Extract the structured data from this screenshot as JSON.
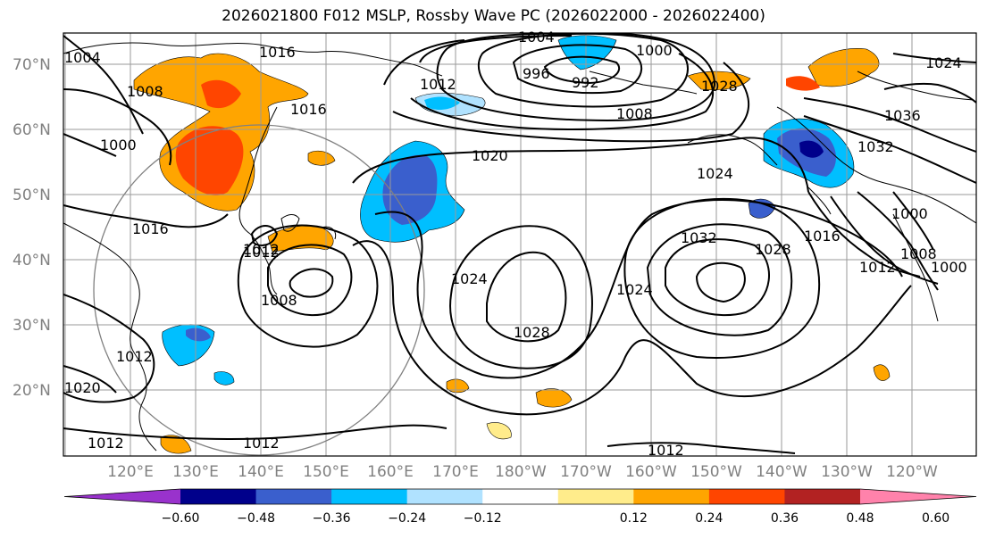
{
  "title": "2026021800 F012 MSLP, Rossby Wave PC (2026022000 - 2026022400)",
  "lat_labels": [
    "70°N",
    "60°N",
    "50°N",
    "40°N",
    "30°N",
    "20°N"
  ],
  "lon_labels": [
    "120°E",
    "130°E",
    "140°E",
    "150°E",
    "160°E",
    "170°E",
    "180°W",
    "170°W",
    "160°W",
    "150°W",
    "140°W",
    "130°W",
    "120°W"
  ],
  "colorbar": {
    "ticks": [
      "−0.60",
      "−0.48",
      "−0.36",
      "−0.24",
      "−0.12",
      "0.12",
      "0.24",
      "0.36",
      "0.48",
      "0.60"
    ],
    "colors": [
      "#9932CC",
      "#00008B",
      "#3A5FCD",
      "#00BFFF",
      "#B0E2FF",
      "#FFFFFF",
      "#FFEC8B",
      "#FFA500",
      "#FF4500",
      "#B22222",
      "#FF82AB"
    ]
  },
  "contour_labels": [
    {
      "id": "l1004a",
      "text": "1004"
    },
    {
      "id": "l1016a",
      "text": "1016"
    },
    {
      "id": "l1008a",
      "text": "1008"
    },
    {
      "id": "l1012a",
      "text": "1012"
    },
    {
      "id": "l1004b",
      "text": "1004"
    },
    {
      "id": "l1000a",
      "text": "1000"
    },
    {
      "id": "l996",
      "text": "996"
    },
    {
      "id": "l992",
      "text": "992"
    },
    {
      "id": "l1008b",
      "text": "1008"
    },
    {
      "id": "l1024a",
      "text": "1024"
    },
    {
      "id": "l1028a",
      "text": "1028"
    },
    {
      "id": "l1036",
      "text": "1036"
    },
    {
      "id": "l1032a",
      "text": "1032"
    },
    {
      "id": "l1008c",
      "text": "1008"
    },
    {
      "id": "l1000b",
      "text": "1000"
    },
    {
      "id": "l1000c",
      "text": "1000"
    },
    {
      "id": "l1020",
      "text": "1020"
    },
    {
      "id": "l1024b",
      "text": "1024"
    },
    {
      "id": "l1016b",
      "text": "1016"
    },
    {
      "id": "l1012b",
      "text": "1012"
    },
    {
      "id": "l1016c",
      "text": "1016"
    },
    {
      "id": "l1012c",
      "text": "1012"
    },
    {
      "id": "l1008d",
      "text": "1008"
    },
    {
      "id": "l1024c",
      "text": "1024"
    },
    {
      "id": "l1028b",
      "text": "1028"
    },
    {
      "id": "l1032b",
      "text": "1032"
    },
    {
      "id": "l1028c",
      "text": "1028"
    },
    {
      "id": "l1024d",
      "text": "1024"
    },
    {
      "id": "l1016d",
      "text": "1016"
    },
    {
      "id": "l1012d",
      "text": "1012"
    },
    {
      "id": "l1012e",
      "text": "1012"
    },
    {
      "id": "l1012f",
      "text": "1012"
    },
    {
      "id": "l1012g",
      "text": "1012"
    },
    {
      "id": "l1020b",
      "text": "1020"
    },
    {
      "id": "l1012h",
      "text": "1012"
    },
    {
      "id": "l1000d",
      "text": "1000"
    }
  ]
}
